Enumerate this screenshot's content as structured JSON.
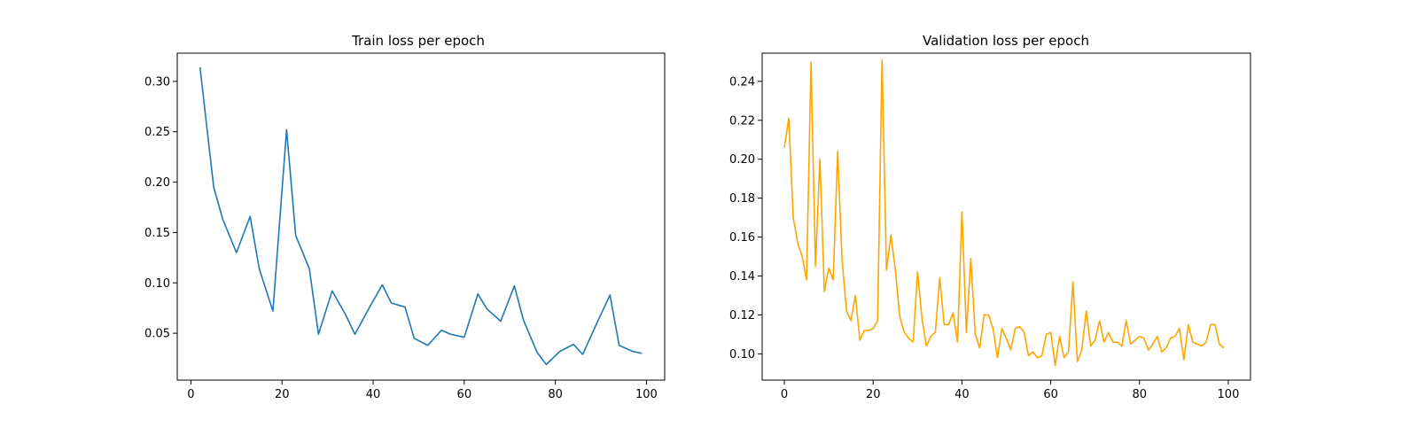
{
  "chart_data": [
    {
      "type": "line",
      "title": "Train loss per epoch",
      "xlabel": "",
      "ylabel": "",
      "xlim": [
        -3,
        104
      ],
      "ylim": [
        0.0035,
        0.328
      ],
      "xticks": [
        0,
        20,
        40,
        60,
        80,
        100
      ],
      "yticks": [
        0.05,
        0.1,
        0.15,
        0.2,
        0.25,
        0.3
      ],
      "ytick_labels": [
        "0.05",
        "0.10",
        "0.15",
        "0.20",
        "0.25",
        "0.30"
      ],
      "grid": false,
      "legend": "none",
      "color": "#1f77b4",
      "series": [
        {
          "x": [
            2,
            5,
            7,
            10,
            13,
            15,
            18,
            21,
            23,
            26,
            28,
            31,
            34,
            36,
            39,
            42,
            44,
            47,
            49,
            52,
            55,
            57,
            60,
            63,
            65,
            68,
            71,
            73,
            76,
            78,
            81,
            84,
            86,
            89,
            92,
            94,
            97,
            99
          ],
          "values": [
            0.314,
            0.195,
            0.163,
            0.13,
            0.166,
            0.114,
            0.072,
            0.252,
            0.147,
            0.114,
            0.049,
            0.092,
            0.068,
            0.049,
            0.074,
            0.098,
            0.08,
            0.076,
            0.045,
            0.038,
            0.053,
            0.049,
            0.046,
            0.089,
            0.074,
            0.062,
            0.097,
            0.063,
            0.031,
            0.019,
            0.032,
            0.039,
            0.029,
            0.059,
            0.088,
            0.038,
            0.032,
            0.03
          ]
        }
      ]
    },
    {
      "type": "line",
      "title": "Validation loss per epoch",
      "xlabel": "",
      "ylabel": "",
      "xlim": [
        -5,
        105
      ],
      "ylim": [
        0.0865,
        0.2545
      ],
      "xticks": [
        0,
        20,
        40,
        60,
        80,
        100
      ],
      "yticks": [
        0.1,
        0.12,
        0.14,
        0.16,
        0.18,
        0.2,
        0.22,
        0.24
      ],
      "ytick_labels": [
        "0.10",
        "0.12",
        "0.14",
        "0.16",
        "0.18",
        "0.20",
        "0.22",
        "0.24"
      ],
      "grid": false,
      "legend": "none",
      "color": "#ffa500",
      "series": [
        {
          "x": [
            0,
            1,
            2,
            3,
            4,
            5,
            6,
            7,
            8,
            9,
            10,
            11,
            12,
            13,
            14,
            15,
            16,
            17,
            18,
            19,
            20,
            21,
            22,
            23,
            24,
            25,
            26,
            27,
            28,
            29,
            30,
            31,
            32,
            33,
            34,
            35,
            36,
            37,
            38,
            39,
            40,
            41,
            42,
            43,
            44,
            45,
            46,
            47,
            48,
            49,
            50,
            51,
            52,
            53,
            54,
            55,
            56,
            57,
            58,
            59,
            60,
            61,
            62,
            63,
            64,
            65,
            66,
            67,
            68,
            69,
            70,
            71,
            72,
            73,
            74,
            75,
            76,
            77,
            78,
            79,
            80,
            81,
            82,
            83,
            84,
            85,
            86,
            87,
            88,
            89,
            90,
            91,
            92,
            93,
            94,
            95,
            96,
            97,
            98,
            99
          ],
          "values": [
            0.206,
            0.221,
            0.17,
            0.157,
            0.15,
            0.138,
            0.25,
            0.145,
            0.2,
            0.132,
            0.144,
            0.138,
            0.204,
            0.148,
            0.122,
            0.117,
            0.13,
            0.107,
            0.112,
            0.112,
            0.113,
            0.117,
            0.251,
            0.143,
            0.161,
            0.143,
            0.119,
            0.111,
            0.108,
            0.106,
            0.142,
            0.118,
            0.104,
            0.109,
            0.111,
            0.139,
            0.115,
            0.115,
            0.121,
            0.106,
            0.173,
            0.111,
            0.149,
            0.11,
            0.103,
            0.12,
            0.12,
            0.113,
            0.098,
            0.113,
            0.108,
            0.102,
            0.113,
            0.114,
            0.111,
            0.099,
            0.101,
            0.098,
            0.099,
            0.11,
            0.111,
            0.094,
            0.109,
            0.098,
            0.101,
            0.137,
            0.096,
            0.102,
            0.122,
            0.104,
            0.107,
            0.117,
            0.106,
            0.111,
            0.106,
            0.106,
            0.104,
            0.117,
            0.105,
            0.107,
            0.109,
            0.108,
            0.102,
            0.105,
            0.109,
            0.101,
            0.103,
            0.108,
            0.109,
            0.113,
            0.097,
            0.115,
            0.106,
            0.105,
            0.104,
            0.106,
            0.115,
            0.115,
            0.105,
            0.103
          ]
        }
      ]
    }
  ]
}
